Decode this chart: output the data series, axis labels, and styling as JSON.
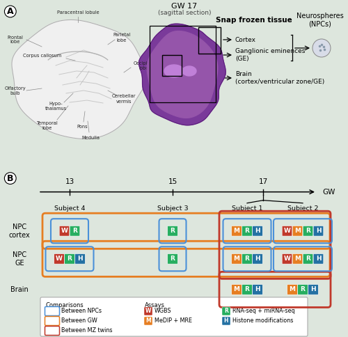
{
  "fig_width": 5.0,
  "fig_height": 4.84,
  "bg_color": "#dde6dd",
  "panel_bg": "#f7f7f7",
  "section_A_label": "A",
  "section_B_label": "B",
  "gw_title": "GW 17",
  "gw_subtitle": "(sagittal section)",
  "snap_frozen_label": "Snap frozen tissue",
  "neurospheres_label": "Neurospheres\n(NPCs)",
  "tissue_labels": [
    "Cortex",
    "Ganglionic eminences\n(GE)",
    "Brain\n(cortex/ventricular zone/GE)"
  ],
  "timeline_gws": [
    13,
    15,
    17
  ],
  "gw_label": "GW",
  "assay_colors": {
    "W": "#c0392b",
    "M": "#e67e22",
    "R": "#27ae60",
    "H": "#2471a3"
  },
  "cell_assays": {
    "npc_cortex": {
      "subj4": [
        "W",
        "R"
      ],
      "subj3": [
        "R"
      ],
      "subj1": [
        "M",
        "R",
        "H"
      ],
      "subj2": [
        "W",
        "M",
        "R",
        "H"
      ]
    },
    "npc_ge": {
      "subj4": [
        "W",
        "R",
        "H"
      ],
      "subj3": [
        "R"
      ],
      "subj1": [
        "M",
        "R",
        "H"
      ],
      "subj2": [
        "W",
        "M",
        "R",
        "H"
      ]
    },
    "brain": {
      "subj4": [],
      "subj3": [],
      "subj1": [
        "M",
        "R",
        "H"
      ],
      "subj2": [
        "M",
        "R",
        "H"
      ]
    }
  },
  "legend_comparisons": [
    {
      "label": "Between NPCs",
      "color": "#4a90d9"
    },
    {
      "label": "Between GW",
      "color": "#e67e22"
    },
    {
      "label": "Between MZ twins",
      "color": "#c0392b"
    }
  ],
  "legend_assays": [
    {
      "key": "W",
      "color": "#c0392b",
      "label": "WGBS"
    },
    {
      "key": "M",
      "color": "#e67e22",
      "label": "MeDIP + MRE"
    },
    {
      "key": "R",
      "color": "#27ae60",
      "label": "RNA-seq + miRNA-seq"
    },
    {
      "key": "H",
      "color": "#2471a3",
      "label": "Histone modifications"
    }
  ]
}
